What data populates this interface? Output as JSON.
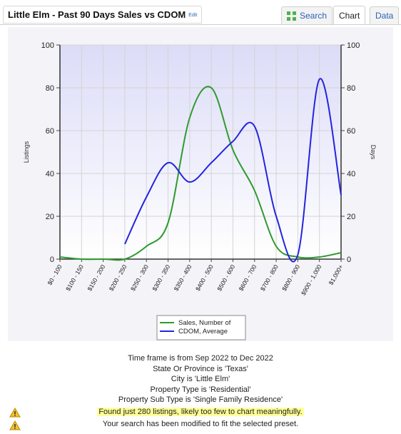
{
  "header": {
    "title": "Little Elm - Past 90 Days Sales vs CDOM",
    "edit_label": "Edit"
  },
  "tabs": [
    {
      "label": "Search",
      "icon": "expand-arrows-icon",
      "active": false
    },
    {
      "label": "Chart",
      "active": true
    },
    {
      "label": "Data",
      "active": false
    }
  ],
  "colors": {
    "sales": "#2e9a2e",
    "cdom": "#2424e0",
    "accent": "#2a62b8",
    "highlight": "#ffff99"
  },
  "chart_data": {
    "type": "line",
    "categories": [
      "$0 - 100",
      "$100 - 150",
      "$150 - 200",
      "$200 - 250",
      "$250 - 300",
      "$300 - 350",
      "$350 - 400",
      "$400 - 500",
      "$500 - 600",
      "$600 - 700",
      "$700 - 800",
      "$800 - 900",
      "$900 - 1,000",
      "$1,000+"
    ],
    "ylabel": "Listings",
    "y2label": "Days",
    "ylim": [
      0,
      100
    ],
    "y2lim": [
      0,
      100
    ],
    "yticks": [
      "0",
      "20",
      "40",
      "60",
      "80",
      "100"
    ],
    "grid": true,
    "legend_position": "bottom",
    "series": [
      {
        "name": "Sales, Number of",
        "axis": "left",
        "x": [
          0,
          1,
          2,
          3,
          4,
          5,
          6,
          7,
          8,
          9,
          10,
          11,
          12,
          13
        ],
        "values": [
          1,
          0,
          0,
          0,
          6,
          17,
          66,
          80,
          51,
          32,
          6,
          1,
          1,
          3
        ]
      },
      {
        "name": "CDOM, Average",
        "axis": "right",
        "x": [
          3,
          4,
          5,
          6,
          7,
          8,
          9,
          10,
          11,
          12,
          13
        ],
        "values": [
          7,
          29,
          45,
          36,
          45,
          55,
          62,
          20,
          2,
          84,
          30
        ]
      }
    ]
  },
  "info_lines": [
    "Time frame is from Sep 2022 to Dec 2022",
    "State Or Province is 'Texas'",
    "City is 'Little Elm'",
    "Property Type is 'Residential'",
    "Property Sub Type is 'Single Family Residence'"
  ],
  "warnings": [
    {
      "text": "Found just 280 listings, likely too few to chart meaningfully.",
      "icon": "warning-icon",
      "highlight": true
    },
    {
      "text": "Your search has been modified to fit the selected preset.",
      "icon": "warning-icon",
      "highlight": false
    }
  ]
}
